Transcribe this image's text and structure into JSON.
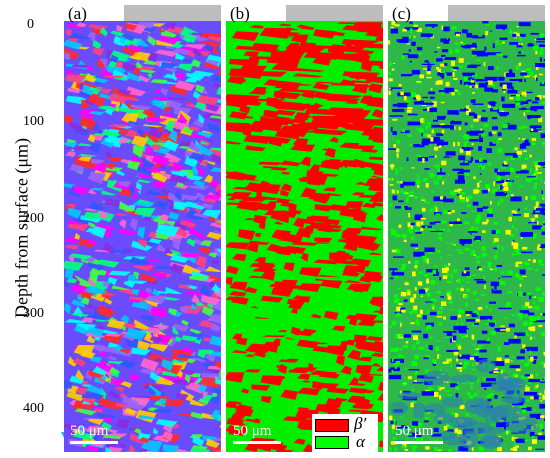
{
  "figure": {
    "y_axis_label": "Depth from surface (μm)",
    "y_ticks": [
      "0",
      "100",
      "200",
      "300",
      "400"
    ],
    "panels": [
      {
        "label": "(a)",
        "map": "ipf",
        "scale_bar": "50 μm"
      },
      {
        "label": "(b)",
        "map": "phase",
        "scale_bar": "50 μm"
      },
      {
        "label": "(c)",
        "map": "kam",
        "scale_bar": "50 μm"
      }
    ],
    "legend": [
      {
        "symbol": "β′",
        "color": "#ff0000"
      },
      {
        "symbol": "α",
        "color": "#00ff00"
      }
    ],
    "colors": {
      "axis_arrow": "#22b3f0",
      "surface_bar": "#bdbdbd",
      "kam_low": "#0000ff",
      "kam_mid": "#00ff00",
      "kam_high": "#ffff00"
    }
  }
}
